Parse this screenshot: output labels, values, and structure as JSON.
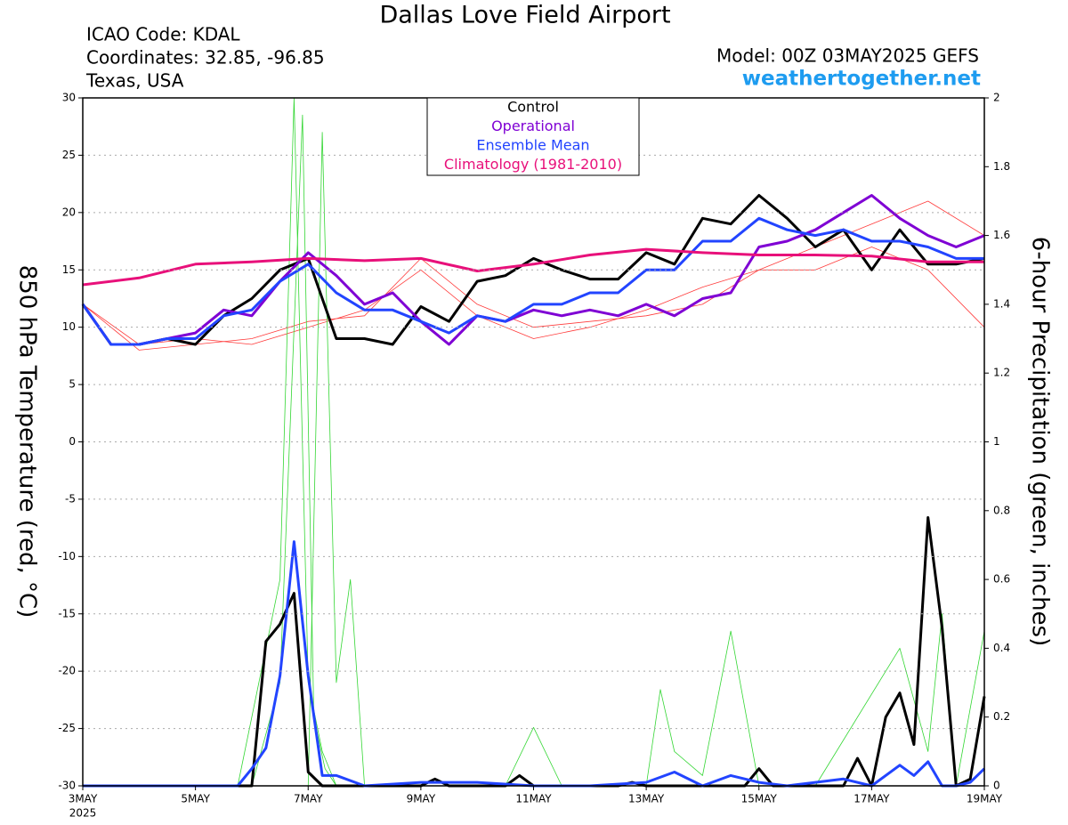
{
  "chart_data": {
    "type": "line",
    "title": "Dallas Love Field Airport",
    "info_left": [
      "ICAO Code: KDAL",
      "Coordinates: 32.85, -96.85",
      "Texas, USA"
    ],
    "model": "Model: 00Z 03MAY2025 GEFS",
    "site": "weathertogether.net",
    "ylabel": "850 hPa Temperature (red, °C)",
    "y2label": "6-hour Precipitation (green, inches)",
    "xlim": [
      0,
      16
    ],
    "xticks": [
      {
        "value": 0,
        "label": "3MAY"
      },
      {
        "value": 2,
        "label": "5MAY"
      },
      {
        "value": 4,
        "label": "7MAY"
      },
      {
        "value": 6,
        "label": "9MAY"
      },
      {
        "value": 8,
        "label": "11MAY"
      },
      {
        "value": 10,
        "label": "13MAY"
      },
      {
        "value": 12,
        "label": "15MAY"
      },
      {
        "value": 14,
        "label": "17MAY"
      },
      {
        "value": 16,
        "label": "19MAY"
      }
    ],
    "year_label": "2025",
    "ylim": [
      -30,
      30
    ],
    "yticks": [
      -30,
      -25,
      -20,
      -15,
      -10,
      -5,
      0,
      5,
      10,
      15,
      20,
      25,
      30
    ],
    "y2lim": [
      0,
      2
    ],
    "y2ticks": [
      0,
      0.2,
      0.4,
      0.6,
      0.8,
      1,
      1.2,
      1.4,
      1.6,
      1.8,
      2
    ],
    "grid": true,
    "members": [
      {
        "color": "#ff3b3b",
        "x": [
          0,
          1,
          2,
          3,
          4,
          5,
          6,
          7,
          8,
          9,
          10,
          11,
          12,
          13,
          14,
          15,
          16
        ],
        "values": [
          12,
          8,
          8.5,
          9,
          10.5,
          11,
          16,
          12,
          10,
          10.5,
          11,
          12,
          15,
          17,
          19,
          21,
          18
        ]
      },
      {
        "color": "#ff3b3b",
        "x": [
          0,
          1,
          2,
          3,
          4,
          5,
          6,
          7,
          8,
          9,
          10,
          11,
          12,
          13,
          14,
          15,
          16
        ],
        "values": [
          12,
          8.5,
          9,
          8.5,
          10,
          11.5,
          15,
          11,
          9,
          10,
          11.5,
          13.5,
          15,
          15,
          17,
          15,
          10
        ]
      },
      {
        "color": "#33d633",
        "axis": "y2",
        "x": [
          0,
          2.75,
          3.5,
          3.75,
          4,
          4.25,
          4.5,
          16
        ],
        "values": [
          0,
          0,
          0.6,
          2,
          0.3,
          0.1,
          0,
          0
        ]
      },
      {
        "color": "#33d633",
        "axis": "y2",
        "x": [
          0,
          3,
          3.5,
          3.9,
          4.1,
          4.3,
          4.5,
          5,
          16
        ],
        "values": [
          0,
          0,
          0.3,
          1.95,
          0.2,
          0.05,
          0,
          0,
          0
        ]
      },
      {
        "color": "#33d633",
        "axis": "y2",
        "x": [
          0,
          4,
          4.25,
          4.5,
          4.75,
          5,
          13,
          14.5,
          15,
          15.25,
          15.5,
          16
        ],
        "values": [
          0,
          0,
          1.9,
          0.3,
          0.6,
          0,
          0,
          0.4,
          0.1,
          0.5,
          0,
          0.45
        ]
      },
      {
        "color": "#33d633",
        "axis": "y2",
        "x": [
          0,
          7.5,
          8,
          8.5,
          10,
          10.25,
          10.5,
          11,
          11.5,
          12,
          16
        ],
        "values": [
          0,
          0,
          0.17,
          0,
          0,
          0.28,
          0.1,
          0.03,
          0.45,
          0,
          0
        ]
      }
    ],
    "series": [
      {
        "name": "Control",
        "color": "#000000",
        "x": [
          0,
          0.5,
          1,
          1.5,
          2,
          2.5,
          3,
          3.5,
          4,
          4.5,
          5,
          5.5,
          6,
          6.5,
          7,
          7.5,
          8,
          8.5,
          9,
          9.5,
          10,
          10.5,
          11,
          11.5,
          12,
          12.5,
          13,
          13.5,
          14,
          14.5,
          15,
          15.5,
          16
        ],
        "values": [
          12,
          8.5,
          8.5,
          9,
          8.5,
          11,
          12.5,
          15,
          16,
          9,
          9,
          8.5,
          11.8,
          10.5,
          14,
          14.5,
          16,
          15,
          14.2,
          14.2,
          16.5,
          15.5,
          19.5,
          19,
          21.5,
          19.5,
          17,
          18.5,
          15,
          18.5,
          15.5,
          15.5,
          16
        ]
      },
      {
        "name": "Operational",
        "color": "#7f00d4",
        "x": [
          0,
          0.5,
          1,
          1.5,
          2,
          2.5,
          3,
          3.5,
          4,
          4.5,
          5,
          5.5,
          6,
          6.5,
          7,
          7.5,
          8,
          8.5,
          9,
          9.5,
          10,
          10.5,
          11,
          11.5,
          12,
          12.5,
          13,
          13.5,
          14,
          14.5,
          15,
          15.5,
          16
        ],
        "values": [
          12,
          8.5,
          8.5,
          9,
          9.5,
          11.5,
          11,
          14,
          16.5,
          14.5,
          12,
          13,
          10.5,
          8.5,
          11,
          10.5,
          11.5,
          11,
          11.5,
          11,
          12,
          11,
          12.5,
          13,
          17,
          17.5,
          18.5,
          20,
          21.5,
          19.5,
          18,
          17,
          18
        ]
      },
      {
        "name": "Ensemble Mean",
        "color": "#2244ff",
        "x": [
          0,
          0.5,
          1,
          1.5,
          2,
          2.5,
          3,
          3.5,
          4,
          4.5,
          5,
          5.5,
          6,
          6.5,
          7,
          7.5,
          8,
          8.5,
          9,
          9.5,
          10,
          10.5,
          11,
          11.5,
          12,
          12.5,
          13,
          13.5,
          14,
          14.5,
          15,
          15.5,
          16
        ],
        "values": [
          12,
          8.5,
          8.5,
          9,
          9,
          11,
          11.5,
          14,
          15.5,
          13,
          11.5,
          11.5,
          10.5,
          9.5,
          11,
          10.5,
          12,
          12,
          13,
          13,
          15,
          15,
          17.5,
          17.5,
          19.5,
          18.5,
          18,
          18.5,
          17.5,
          17.5,
          17,
          16,
          16
        ]
      },
      {
        "name": "Climatology (1981-2010)",
        "color": "#e8107a",
        "x": [
          0,
          1,
          2,
          3,
          4,
          5,
          6,
          7,
          8,
          9,
          10,
          11,
          12,
          13,
          14,
          15,
          16
        ],
        "values": [
          13.7,
          14.3,
          15.5,
          15.7,
          16,
          15.8,
          16,
          14.9,
          15.5,
          16.3,
          16.8,
          16.5,
          16.3,
          16.3,
          16.2,
          15.7,
          15.7
        ]
      }
    ],
    "precip_series": [
      {
        "color": "#000000",
        "x": [
          0,
          3,
          3.25,
          3.5,
          3.75,
          4,
          4.25,
          6,
          6.25,
          6.5,
          7.5,
          7.75,
          8,
          9.5,
          9.75,
          10,
          11.75,
          12,
          12.25,
          13.5,
          13.75,
          14,
          14.25,
          14.5,
          14.75,
          15,
          15.25,
          15.5,
          15.75,
          16
        ],
        "values": [
          0,
          0,
          0.42,
          0.47,
          0.56,
          0.04,
          0,
          0,
          0.02,
          0,
          0,
          0.03,
          0,
          0,
          0.01,
          0,
          0,
          0.05,
          0,
          0,
          0.08,
          0,
          0.2,
          0.27,
          0.12,
          0.78,
          0.46,
          0,
          0.02,
          0.26
        ]
      },
      {
        "color": "#2244ff",
        "x": [
          0,
          2.75,
          3,
          3.25,
          3.5,
          3.75,
          4,
          4.25,
          4.5,
          5,
          6,
          7,
          8,
          9,
          10,
          10.5,
          11,
          11.5,
          12,
          12.5,
          13,
          13.5,
          14,
          14.5,
          14.75,
          15,
          15.25,
          15.5,
          15.75,
          16
        ],
        "values": [
          0,
          0,
          0.05,
          0.11,
          0.32,
          0.71,
          0.32,
          0.03,
          0.03,
          0,
          0.01,
          0.01,
          0,
          0,
          0.01,
          0.04,
          0,
          0.03,
          0.01,
          0,
          0.01,
          0.02,
          0,
          0.06,
          0.03,
          0.07,
          0,
          0,
          0.01,
          0.05
        ]
      }
    ]
  }
}
